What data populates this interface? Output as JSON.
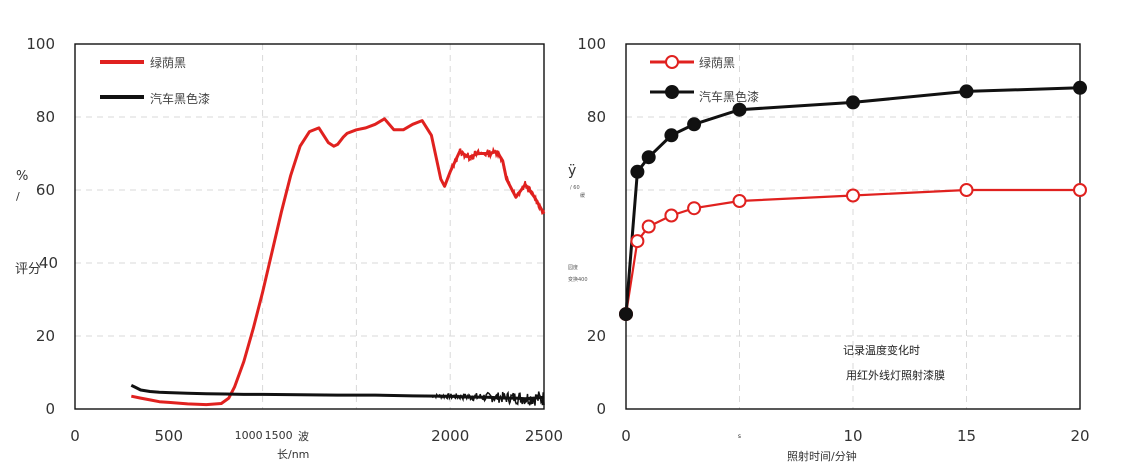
{
  "chart_data": [
    {
      "type": "line",
      "title": "",
      "xlabel": "长/nm",
      "xlabel_extra": "波",
      "ylabel_parts": [
        "%",
        "/",
        "评分"
      ],
      "xlim": [
        0,
        2500
      ],
      "ylim": [
        0,
        100
      ],
      "xticks": [
        {
          "value": 0,
          "label": "0"
        },
        {
          "value": 500,
          "label": "500"
        },
        {
          "value": 1000,
          "label": "1000"
        },
        {
          "value": 1500,
          "label": "1500"
        },
        {
          "value": 2000,
          "label": "2000"
        },
        {
          "value": 2500,
          "label": "2500"
        }
      ],
      "yticks": [
        {
          "value": 0,
          "label": "0"
        },
        {
          "value": 20,
          "label": "20"
        },
        {
          "value": 40,
          "label": "40"
        },
        {
          "value": 60,
          "label": "60"
        },
        {
          "value": 80,
          "label": "80"
        },
        {
          "value": 100,
          "label": "100"
        }
      ],
      "grid": true,
      "legend_position": "top-left",
      "series": [
        {
          "name": "绿荫黑",
          "color": "#e0211f",
          "x": [
            300,
            350,
            400,
            450,
            500,
            600,
            700,
            780,
            820,
            850,
            900,
            950,
            1000,
            1050,
            1100,
            1150,
            1200,
            1250,
            1300,
            1350,
            1380,
            1400,
            1430,
            1450,
            1500,
            1550,
            1600,
            1650,
            1700,
            1750,
            1800,
            1850,
            1900,
            1950,
            1970,
            2000,
            2050,
            2100,
            2150,
            2200,
            2250,
            2280,
            2300,
            2350,
            2400,
            2450,
            2500
          ],
          "y": [
            3.5,
            3,
            2.5,
            2,
            1.8,
            1.4,
            1.2,
            1.5,
            3,
            6,
            13,
            22,
            32,
            43,
            54,
            64,
            72,
            76,
            77,
            73,
            72,
            72.5,
            74.5,
            75.5,
            76.5,
            77,
            78,
            79.5,
            76.5,
            76.5,
            78,
            79,
            75,
            63,
            61,
            65,
            70.5,
            69,
            70,
            70,
            70.5,
            68,
            63,
            58,
            61.5,
            58,
            53.5
          ]
        },
        {
          "name": "汽车黑色漆",
          "color": "#111111",
          "x": [
            300,
            320,
            350,
            400,
            450,
            500,
            600,
            700,
            800,
            900,
            1000,
            1200,
            1400,
            1600,
            1800,
            2000,
            2100,
            2200,
            2300,
            2350,
            2400,
            2450,
            2500
          ],
          "y": [
            6.5,
            6,
            5.2,
            4.8,
            4.6,
            4.5,
            4.3,
            4.2,
            4.1,
            4.0,
            4.0,
            3.9,
            3.8,
            3.8,
            3.6,
            3.5,
            3.3,
            3.2,
            3.0,
            3.0,
            2.8,
            3.0,
            3.2
          ]
        }
      ]
    },
    {
      "type": "line",
      "title": "",
      "xlabel": "照射时间/分钟",
      "ylabel_parts": [
        "ÿ",
        "/ 60",
        "缓"
      ],
      "xlim": [
        0,
        20
      ],
      "ylim": [
        0,
        100
      ],
      "xticks": [
        {
          "value": 0,
          "label": "0"
        },
        {
          "value": 5,
          "label": "s"
        },
        {
          "value": 10,
          "label": "10"
        },
        {
          "value": 15,
          "label": "15"
        },
        {
          "value": 20,
          "label": "20"
        }
      ],
      "yticks": [
        {
          "value": 0,
          "label": "0"
        },
        {
          "value": 20,
          "label": "20"
        },
        {
          "value": 80,
          "label": "80"
        },
        {
          "value": 100,
          "label": "100"
        }
      ],
      "stray_labels": [
        "园度",
        "变换400"
      ],
      "annotations": [
        "记录温度变化时",
        "用红外线灯照射漆膜"
      ],
      "grid": true,
      "legend_position": "top-left",
      "series": [
        {
          "name": "绿荫黑",
          "color": "#e0211f",
          "marker": "open-circle",
          "x": [
            0,
            0.5,
            1,
            2,
            3,
            5,
            10,
            15,
            20
          ],
          "y": [
            26,
            46,
            50,
            53,
            55,
            57,
            58.5,
            60,
            60
          ]
        },
        {
          "name": "汽车黑色漆",
          "color": "#111111",
          "marker": "filled-circle",
          "x": [
            0,
            0.5,
            1,
            2,
            3,
            5,
            10,
            15,
            20
          ],
          "y": [
            26,
            65,
            69,
            75,
            78,
            82,
            84,
            87,
            88
          ]
        }
      ]
    }
  ]
}
